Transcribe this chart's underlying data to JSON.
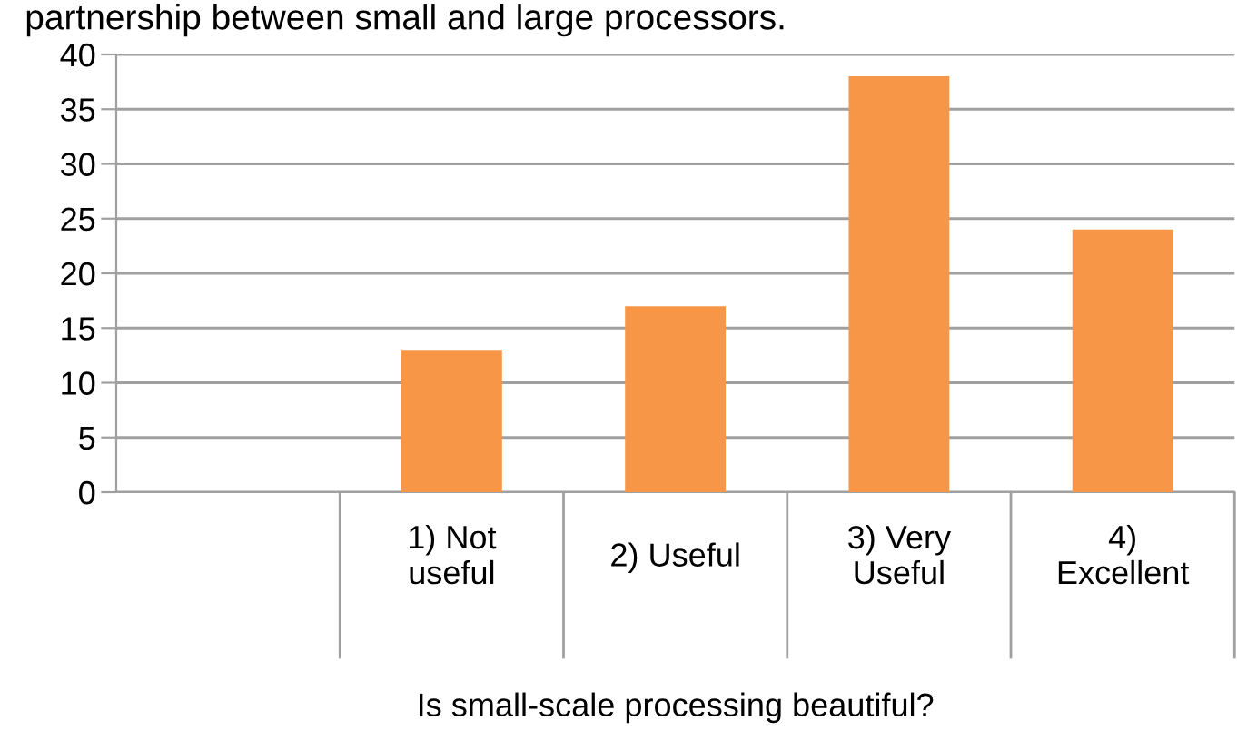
{
  "chart_data": {
    "type": "bar",
    "title": "partnership between small and large processors.",
    "xlabel": "Is small-scale processing beautiful?",
    "categories": [
      null,
      "1) Not\nuseful",
      "2) Useful",
      "3) Very\nUseful",
      "4)\nExcellent"
    ],
    "values": [
      null,
      13,
      17,
      38,
      24
    ],
    "color": "#f79646",
    "ylim": [
      0,
      40
    ],
    "yticks": [
      0,
      5,
      10,
      15,
      20,
      25,
      30,
      35,
      40
    ],
    "grid": "y",
    "legend": false
  }
}
